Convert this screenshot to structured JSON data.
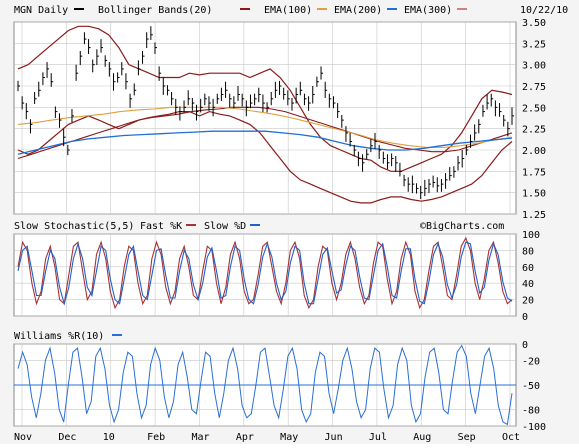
{
  "header": {
    "symbol_label": "MGN Daily",
    "bb_label": "Bollinger Bands(20)",
    "ema100_label": "EMA(100)",
    "ema200_label": "EMA(200)",
    "ema300_label": "EMA(300)",
    "date": "10/22/10"
  },
  "colors": {
    "price": "#000000",
    "bollinger": "#8b1a1a",
    "ema100": "#8b1a1a",
    "ema200": "#e0a040",
    "ema300": "#1f6fd6",
    "fastK": "#a83232",
    "slowD": "#2060d0",
    "williams": "#2a6fd6",
    "grid": "#c8c8c8",
    "panel_bg": "#ffffff",
    "page_bg": "#f4f4f4"
  },
  "watermark": "©BigCharts.com",
  "chart_data": [
    {
      "type": "ohlc",
      "title": "MGN Daily",
      "x_labels": [
        "Nov",
        "Dec",
        "10",
        "Feb",
        "Mar",
        "Apr",
        "May",
        "Jun",
        "Jul",
        "Aug",
        "Sep",
        "Oct"
      ],
      "ylim": [
        1.25,
        3.5
      ],
      "y_ticks": [
        1.25,
        1.5,
        1.75,
        2.0,
        2.25,
        2.5,
        2.75,
        3.0,
        3.25,
        3.5
      ],
      "series": [
        {
          "name": "MGN Daily",
          "legend": "MGN Daily",
          "values": [
            2.75,
            2.55,
            2.45,
            2.3,
            2.6,
            2.7,
            2.85,
            2.95,
            2.8,
            2.45,
            2.35,
            2.15,
            2.0,
            2.4,
            2.9,
            3.1,
            3.3,
            3.2,
            3.0,
            3.1,
            3.2,
            3.05,
            2.95,
            2.8,
            2.85,
            2.95,
            2.8,
            2.6,
            2.7,
            2.95,
            3.1,
            3.3,
            3.35,
            3.2,
            2.9,
            2.75,
            2.7,
            2.6,
            2.5,
            2.45,
            2.5,
            2.6,
            2.55,
            2.45,
            2.5,
            2.6,
            2.55,
            2.5,
            2.6,
            2.65,
            2.7,
            2.6,
            2.55,
            2.65,
            2.6,
            2.5,
            2.55,
            2.6,
            2.65,
            2.55,
            2.5,
            2.6,
            2.7,
            2.75,
            2.65,
            2.6,
            2.55,
            2.65,
            2.7,
            2.6,
            2.55,
            2.65,
            2.8,
            2.9,
            2.7,
            2.6,
            2.55,
            2.45,
            2.35,
            2.2,
            2.1,
            2.0,
            1.9,
            1.85,
            1.95,
            2.05,
            2.1,
            2.0,
            1.9,
            1.85,
            1.9,
            1.85,
            1.75,
            1.65,
            1.6,
            1.6,
            1.55,
            1.5,
            1.55,
            1.6,
            1.62,
            1.58,
            1.6,
            1.65,
            1.7,
            1.75,
            1.85,
            1.9,
            2.0,
            2.1,
            2.2,
            2.3,
            2.45,
            2.55,
            2.6,
            2.5,
            2.45,
            2.35,
            2.25,
            2.4
          ]
        },
        {
          "name": "Bollinger Bands(20)",
          "legend": "Bollinger Bands(20)",
          "upper": [
            2.95,
            3.0,
            3.1,
            3.2,
            3.3,
            3.4,
            3.45,
            3.45,
            3.42,
            3.35,
            3.2,
            3.0,
            2.95,
            2.9,
            2.85,
            2.85,
            2.85,
            2.9,
            2.88,
            2.9,
            2.9,
            2.9,
            2.9,
            2.85,
            2.9,
            2.95,
            2.85,
            2.7,
            2.5,
            2.3,
            2.15,
            2.05,
            2.0,
            1.95,
            1.9,
            1.88,
            1.8,
            1.75,
            1.75,
            1.8,
            1.85,
            1.9,
            1.95,
            2.05,
            2.2,
            2.4,
            2.6,
            2.7,
            2.68,
            2.65
          ],
          "lower": [
            2.0,
            1.95,
            2.0,
            2.1,
            2.2,
            2.3,
            2.35,
            2.4,
            2.35,
            2.3,
            2.25,
            2.3,
            2.35,
            2.38,
            2.4,
            2.42,
            2.45,
            2.45,
            2.4,
            2.45,
            2.42,
            2.4,
            2.35,
            2.3,
            2.2,
            2.05,
            1.9,
            1.75,
            1.65,
            1.6,
            1.55,
            1.5,
            1.45,
            1.4,
            1.38,
            1.38,
            1.42,
            1.45,
            1.45,
            1.42,
            1.4,
            1.42,
            1.45,
            1.5,
            1.55,
            1.6,
            1.7,
            1.85,
            2.0,
            2.1
          ]
        },
        {
          "name": "EMA(100)",
          "legend": "EMA(100)",
          "values": [
            1.9,
            1.95,
            2.0,
            2.05,
            2.1,
            2.15,
            2.2,
            2.25,
            2.3,
            2.35,
            2.38,
            2.4,
            2.42,
            2.45,
            2.47,
            2.48,
            2.5,
            2.5,
            2.5,
            2.48,
            2.45,
            2.4,
            2.35,
            2.3,
            2.25,
            2.2,
            2.15,
            2.1,
            2.06,
            2.02,
            2.0,
            1.98,
            1.98,
            2.0,
            2.05,
            2.1,
            2.15,
            2.2
          ]
        },
        {
          "name": "EMA(200)",
          "legend": "EMA(200)",
          "values": [
            2.3,
            2.32,
            2.35,
            2.38,
            2.4,
            2.42,
            2.45,
            2.47,
            2.48,
            2.5,
            2.5,
            2.5,
            2.5,
            2.48,
            2.45,
            2.42,
            2.38,
            2.33,
            2.28,
            2.23,
            2.18,
            2.12,
            2.08,
            2.05,
            2.03,
            2.03,
            2.05,
            2.08,
            2.12,
            2.15
          ]
        },
        {
          "name": "EMA(300)",
          "legend": "EMA(300)",
          "values": [
            1.95,
            2.0,
            2.05,
            2.1,
            2.13,
            2.15,
            2.17,
            2.18,
            2.19,
            2.2,
            2.21,
            2.22,
            2.22,
            2.22,
            2.22,
            2.2,
            2.18,
            2.15,
            2.1,
            2.05,
            2.02,
            2.0,
            2.0,
            2.02,
            2.05,
            2.08,
            2.1,
            2.12,
            2.14
          ]
        }
      ]
    },
    {
      "type": "line",
      "title": "Slow Stochastic(5,5)",
      "legend": [
        "Fast %K",
        "Slow %D"
      ],
      "ylim": [
        0,
        100
      ],
      "y_ticks": [
        0,
        20,
        40,
        60,
        80,
        100
      ],
      "series": [
        {
          "name": "Fast %K",
          "values": [
            60,
            90,
            80,
            40,
            15,
            30,
            70,
            85,
            60,
            20,
            15,
            50,
            85,
            90,
            55,
            20,
            30,
            75,
            90,
            70,
            30,
            10,
            20,
            60,
            85,
            80,
            40,
            15,
            25,
            70,
            90,
            75,
            35,
            15,
            30,
            70,
            85,
            60,
            25,
            20,
            55,
            85,
            80,
            40,
            15,
            35,
            75,
            90,
            70,
            30,
            15,
            20,
            50,
            85,
            90,
            60,
            30,
            15,
            40,
            80,
            90,
            70,
            25,
            10,
            20,
            60,
            85,
            80,
            40,
            20,
            40,
            75,
            90,
            70,
            35,
            15,
            25,
            65,
            90,
            85,
            45,
            15,
            30,
            70,
            90,
            75,
            30,
            10,
            20,
            55,
            85,
            90,
            60,
            25,
            20,
            50,
            85,
            95,
            80,
            40,
            20,
            45,
            80,
            90,
            65,
            30,
            15,
            20
          ]
        },
        {
          "name": "Slow %D",
          "values": [
            55,
            80,
            85,
            55,
            25,
            25,
            55,
            80,
            70,
            35,
            15,
            35,
            70,
            88,
            70,
            35,
            25,
            55,
            85,
            80,
            45,
            20,
            15,
            45,
            75,
            85,
            55,
            25,
            20,
            50,
            80,
            82,
            50,
            22,
            22,
            55,
            80,
            70,
            38,
            20,
            40,
            72,
            83,
            55,
            22,
            25,
            60,
            85,
            80,
            45,
            20,
            15,
            38,
            72,
            88,
            72,
            40,
            20,
            30,
            65,
            85,
            80,
            40,
            15,
            15,
            45,
            75,
            83,
            55,
            28,
            32,
            62,
            85,
            80,
            48,
            22,
            20,
            50,
            80,
            88,
            60,
            25,
            22,
            55,
            82,
            82,
            45,
            18,
            15,
            42,
            75,
            88,
            72,
            38,
            22,
            38,
            72,
            90,
            88,
            55,
            28,
            35,
            68,
            88,
            75,
            42,
            22,
            18
          ]
        }
      ]
    },
    {
      "type": "line",
      "title": "Williams %R(10)",
      "legend": [
        "Williams %R(10)"
      ],
      "ylim": [
        -100,
        0
      ],
      "y_ticks": [
        0,
        -20,
        -50,
        -80,
        -100
      ],
      "reference_line": -50,
      "series": [
        {
          "name": "Williams %R(10)",
          "values": [
            -30,
            -10,
            -25,
            -65,
            -90,
            -60,
            -20,
            -5,
            -35,
            -80,
            -95,
            -50,
            -10,
            -5,
            -40,
            -85,
            -70,
            -15,
            -5,
            -30,
            -75,
            -95,
            -80,
            -35,
            -10,
            -15,
            -60,
            -90,
            -75,
            -25,
            -5,
            -20,
            -65,
            -90,
            -70,
            -25,
            -10,
            -40,
            -80,
            -85,
            -45,
            -10,
            -15,
            -60,
            -90,
            -60,
            -20,
            -5,
            -30,
            -75,
            -90,
            -85,
            -50,
            -10,
            -5,
            -40,
            -75,
            -90,
            -55,
            -15,
            -5,
            -30,
            -80,
            -95,
            -85,
            -35,
            -10,
            -15,
            -60,
            -85,
            -55,
            -20,
            -5,
            -30,
            -70,
            -90,
            -80,
            -30,
            -5,
            -10,
            -55,
            -90,
            -75,
            -25,
            -5,
            -20,
            -75,
            -95,
            -85,
            -40,
            -10,
            -5,
            -35,
            -80,
            -85,
            -45,
            -10,
            -2,
            -15,
            -60,
            -85,
            -50,
            -15,
            -5,
            -30,
            -75,
            -95,
            -98,
            -60
          ]
        }
      ]
    }
  ]
}
